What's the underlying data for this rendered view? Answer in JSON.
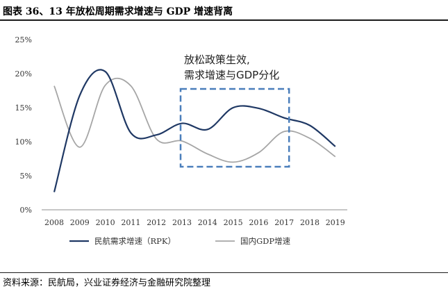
{
  "header": {
    "title": "图表 36、13 年放松周期需求增速与 GDP 增速背离"
  },
  "footer": {
    "source": "资料来源：民航局，兴业证券经济与金融研究院整理"
  },
  "chart_data": {
    "type": "line",
    "title": "",
    "x": [
      2008,
      2009,
      2010,
      2011,
      2012,
      2013,
      2014,
      2015,
      2016,
      2017,
      2018,
      2019
    ],
    "xticks": [
      "2008",
      "2009",
      "2010",
      "2011",
      "2012",
      "2013",
      "2014",
      "2015",
      "2016",
      "2017",
      "2018",
      "2019"
    ],
    "ylim": [
      0,
      25
    ],
    "yticks": [
      0,
      5,
      10,
      15,
      20,
      25
    ],
    "yticklabels": [
      "0%",
      "5%",
      "10%",
      "15%",
      "20%",
      "25%"
    ],
    "series": [
      {
        "name": "民航需求增速（RPK）",
        "color": "#1f3864",
        "values": [
          2.6,
          16.8,
          20.3,
          11.3,
          11.0,
          12.7,
          11.8,
          15.0,
          14.9,
          13.5,
          12.4,
          9.3
        ]
      },
      {
        "name": "国内GDP增速",
        "color": "#a6a6a6",
        "values": [
          18.2,
          9.2,
          18.3,
          18.2,
          10.4,
          10.1,
          8.2,
          7.0,
          8.4,
          11.5,
          10.5,
          7.8
        ]
      }
    ],
    "annotation": {
      "lines": [
        "放松政策生效,",
        "需求增速与GDP分化"
      ],
      "box_color": "#4a7ebb",
      "from": 2013,
      "to": 2017
    },
    "legend_position": "bottom"
  }
}
